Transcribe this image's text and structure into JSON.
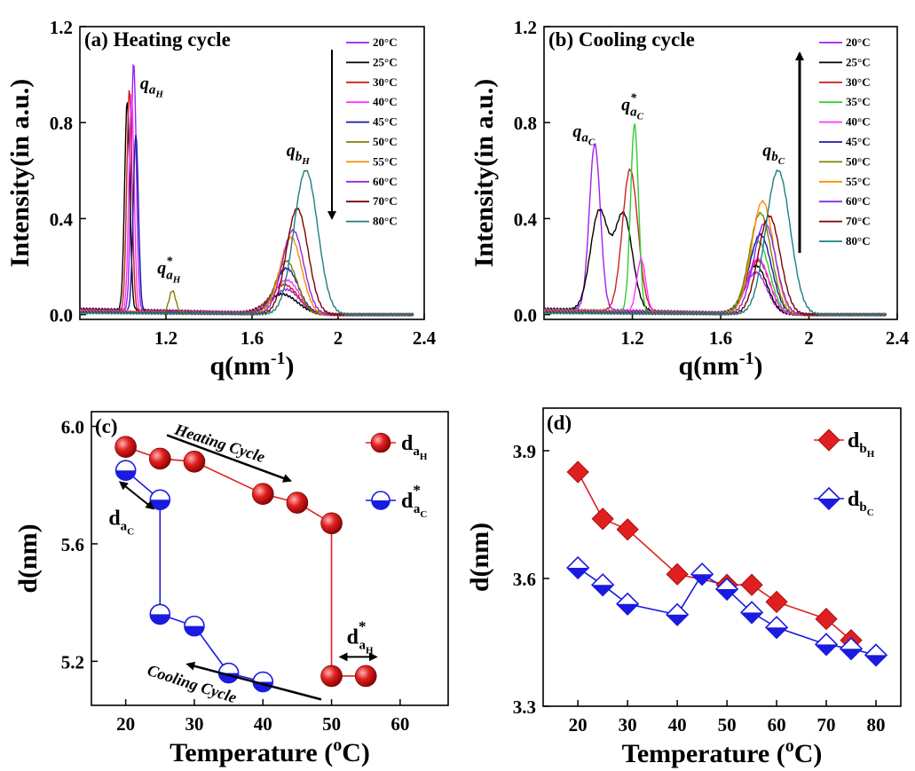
{
  "chart_data": [
    {
      "id": "a",
      "type": "line",
      "panel_label": "(a) Heating cycle",
      "xlabel": "q(nm⁻¹)",
      "ylabel": "Intensity(in a.u.)",
      "xlim": [
        0.8,
        2.4
      ],
      "ylim": [
        -0.02,
        1.2
      ],
      "xticks": [
        "1.2",
        "1.6",
        "2",
        "2.4"
      ],
      "yticks": [
        "0.0",
        "0.4",
        "0.8",
        "1.2"
      ],
      "annotations": [
        "q_aH",
        "q*_aH",
        "q_bH"
      ],
      "arrow": "down",
      "series": [
        {
          "name": "20°C",
          "color": "#a020f0",
          "peaks": [
            [
              1.05,
              1.03,
              0.012
            ],
            [
              1.76,
              0.1,
              0.06
            ]
          ]
        },
        {
          "name": "25°C",
          "color": "#000000",
          "peaks": [
            [
              1.02,
              0.87,
              0.012
            ],
            [
              1.74,
              0.08,
              0.07
            ]
          ]
        },
        {
          "name": "30°C",
          "color": "#cc2222",
          "peaks": [
            [
              1.03,
              0.92,
              0.012
            ],
            [
              1.75,
              0.12,
              0.065
            ]
          ]
        },
        {
          "name": "40°C",
          "color": "#ff33ff",
          "peaks": [
            [
              1.04,
              0.9,
              0.012
            ],
            [
              1.76,
              0.14,
              0.06
            ]
          ]
        },
        {
          "name": "45°C",
          "color": "#1a1aaa",
          "peaks": [
            [
              1.06,
              0.74,
              0.012
            ],
            [
              1.76,
              0.19,
              0.055
            ]
          ]
        },
        {
          "name": "50°C",
          "color": "#808000",
          "peaks": [
            [
              1.23,
              0.09,
              0.015
            ],
            [
              1.76,
              0.22,
              0.05
            ]
          ]
        },
        {
          "name": "55°C",
          "color": "#ff8c00",
          "peaks": [
            [
              1.78,
              0.32,
              0.05
            ]
          ]
        },
        {
          "name": "60°C",
          "color": "#8b2be2",
          "peaks": [
            [
              1.79,
              0.35,
              0.05
            ]
          ]
        },
        {
          "name": "70°C",
          "color": "#800000",
          "peaks": [
            [
              1.81,
              0.44,
              0.05
            ]
          ]
        },
        {
          "name": "80°C",
          "color": "#1f7f7f",
          "peaks": [
            [
              1.85,
              0.6,
              0.055
            ]
          ]
        }
      ]
    },
    {
      "id": "b",
      "type": "line",
      "panel_label": "(b) Cooling cycle",
      "xlabel": "q(nm⁻¹)",
      "ylabel": "Intensity(in a.u.)",
      "xlim": [
        0.8,
        2.4
      ],
      "ylim": [
        -0.02,
        1.2
      ],
      "xticks": [
        "1.2",
        "1.6",
        "2",
        "2.4"
      ],
      "yticks": [
        "0.0",
        "0.4",
        "0.8",
        "1.2"
      ],
      "annotations": [
        "q_aC",
        "q*_aC",
        "q_bC"
      ],
      "arrow": "up",
      "series": [
        {
          "name": "20°C",
          "color": "#a020f0",
          "peaks": [
            [
              1.03,
              0.69,
              0.025
            ],
            [
              1.76,
              0.17,
              0.05
            ]
          ]
        },
        {
          "name": "25°C",
          "color": "#000000",
          "peaks": [
            [
              1.05,
              0.41,
              0.04
            ],
            [
              1.16,
              0.4,
              0.04
            ],
            [
              1.76,
              0.2,
              0.05
            ]
          ]
        },
        {
          "name": "30°C",
          "color": "#cc2222",
          "peaks": [
            [
              1.19,
              0.59,
              0.035
            ],
            [
              1.77,
              0.22,
              0.05
            ]
          ]
        },
        {
          "name": "35°C",
          "color": "#33cc33",
          "peaks": [
            [
              1.21,
              0.78,
              0.018
            ],
            [
              1.77,
              0.3,
              0.05
            ]
          ]
        },
        {
          "name": "40°C",
          "color": "#ff33ff",
          "peaks": [
            [
              1.24,
              0.22,
              0.02
            ],
            [
              1.77,
              0.23,
              0.05
            ]
          ]
        },
        {
          "name": "45°C",
          "color": "#1a1aaa",
          "peaks": [
            [
              1.78,
              0.33,
              0.05
            ]
          ]
        },
        {
          "name": "50°C",
          "color": "#808000",
          "peaks": [
            [
              1.78,
              0.42,
              0.05
            ]
          ]
        },
        {
          "name": "55°C",
          "color": "#ff8c00",
          "peaks": [
            [
              1.79,
              0.47,
              0.05
            ]
          ]
        },
        {
          "name": "60°C",
          "color": "#8b2be2",
          "peaks": [
            [
              1.8,
              0.38,
              0.05
            ]
          ]
        },
        {
          "name": "70°C",
          "color": "#800000",
          "peaks": [
            [
              1.82,
              0.41,
              0.05
            ]
          ]
        },
        {
          "name": "80°C",
          "color": "#1f7f7f",
          "peaks": [
            [
              1.86,
              0.6,
              0.055
            ]
          ]
        }
      ]
    },
    {
      "id": "c",
      "type": "scatter",
      "panel_label": "(c)",
      "xlabel": "Temperature (°C)",
      "ylabel": "d(nm)",
      "xlim": [
        15,
        67
      ],
      "ylim": [
        5.05,
        6.05
      ],
      "xticks": [
        "20",
        "30",
        "40",
        "50",
        "60"
      ],
      "yticks": [
        "5.2",
        "5.6",
        "6.0"
      ],
      "legend_position": "top-right",
      "cycle_labels": [
        "Heating Cycle",
        "Cooling Cycle"
      ],
      "bracket_labels": [
        "d_aC",
        "d*_aH"
      ],
      "series": [
        {
          "name": "d_aH",
          "color": "#e02020",
          "x": [
            20,
            25,
            30,
            40,
            45,
            50,
            50,
            55
          ],
          "y": [
            5.93,
            5.89,
            5.88,
            5.77,
            5.74,
            5.67,
            5.15,
            5.15
          ]
        },
        {
          "name": "d*_aC",
          "color": "#1a1ae0",
          "x": [
            20,
            25,
            25,
            30,
            35,
            40
          ],
          "y": [
            5.85,
            5.75,
            5.36,
            5.32,
            5.16,
            5.13
          ]
        }
      ]
    },
    {
      "id": "d",
      "type": "scatter",
      "panel_label": "(d)",
      "xlabel": "Temperature (°C)",
      "ylabel": "d(nm)",
      "xlim": [
        13,
        85
      ],
      "ylim": [
        3.3,
        4.0
      ],
      "xticks": [
        "20",
        "30",
        "40",
        "50",
        "60",
        "70",
        "80"
      ],
      "yticks": [
        "3.3",
        "3.6",
        "3.9"
      ],
      "legend_position": "top-right",
      "series": [
        {
          "name": "d_bH",
          "color": "#e02020",
          "x": [
            20,
            25,
            30,
            40,
            50,
            55,
            60,
            70,
            75
          ],
          "y": [
            3.85,
            3.74,
            3.715,
            3.61,
            3.585,
            3.585,
            3.545,
            3.505,
            3.455
          ]
        },
        {
          "name": "d_bC",
          "color": "#1a1ae0",
          "x": [
            20,
            25,
            30,
            40,
            45,
            50,
            55,
            60,
            70,
            75,
            80
          ],
          "y": [
            3.625,
            3.585,
            3.54,
            3.515,
            3.61,
            3.575,
            3.52,
            3.485,
            3.445,
            3.435,
            3.42
          ]
        }
      ]
    }
  ]
}
